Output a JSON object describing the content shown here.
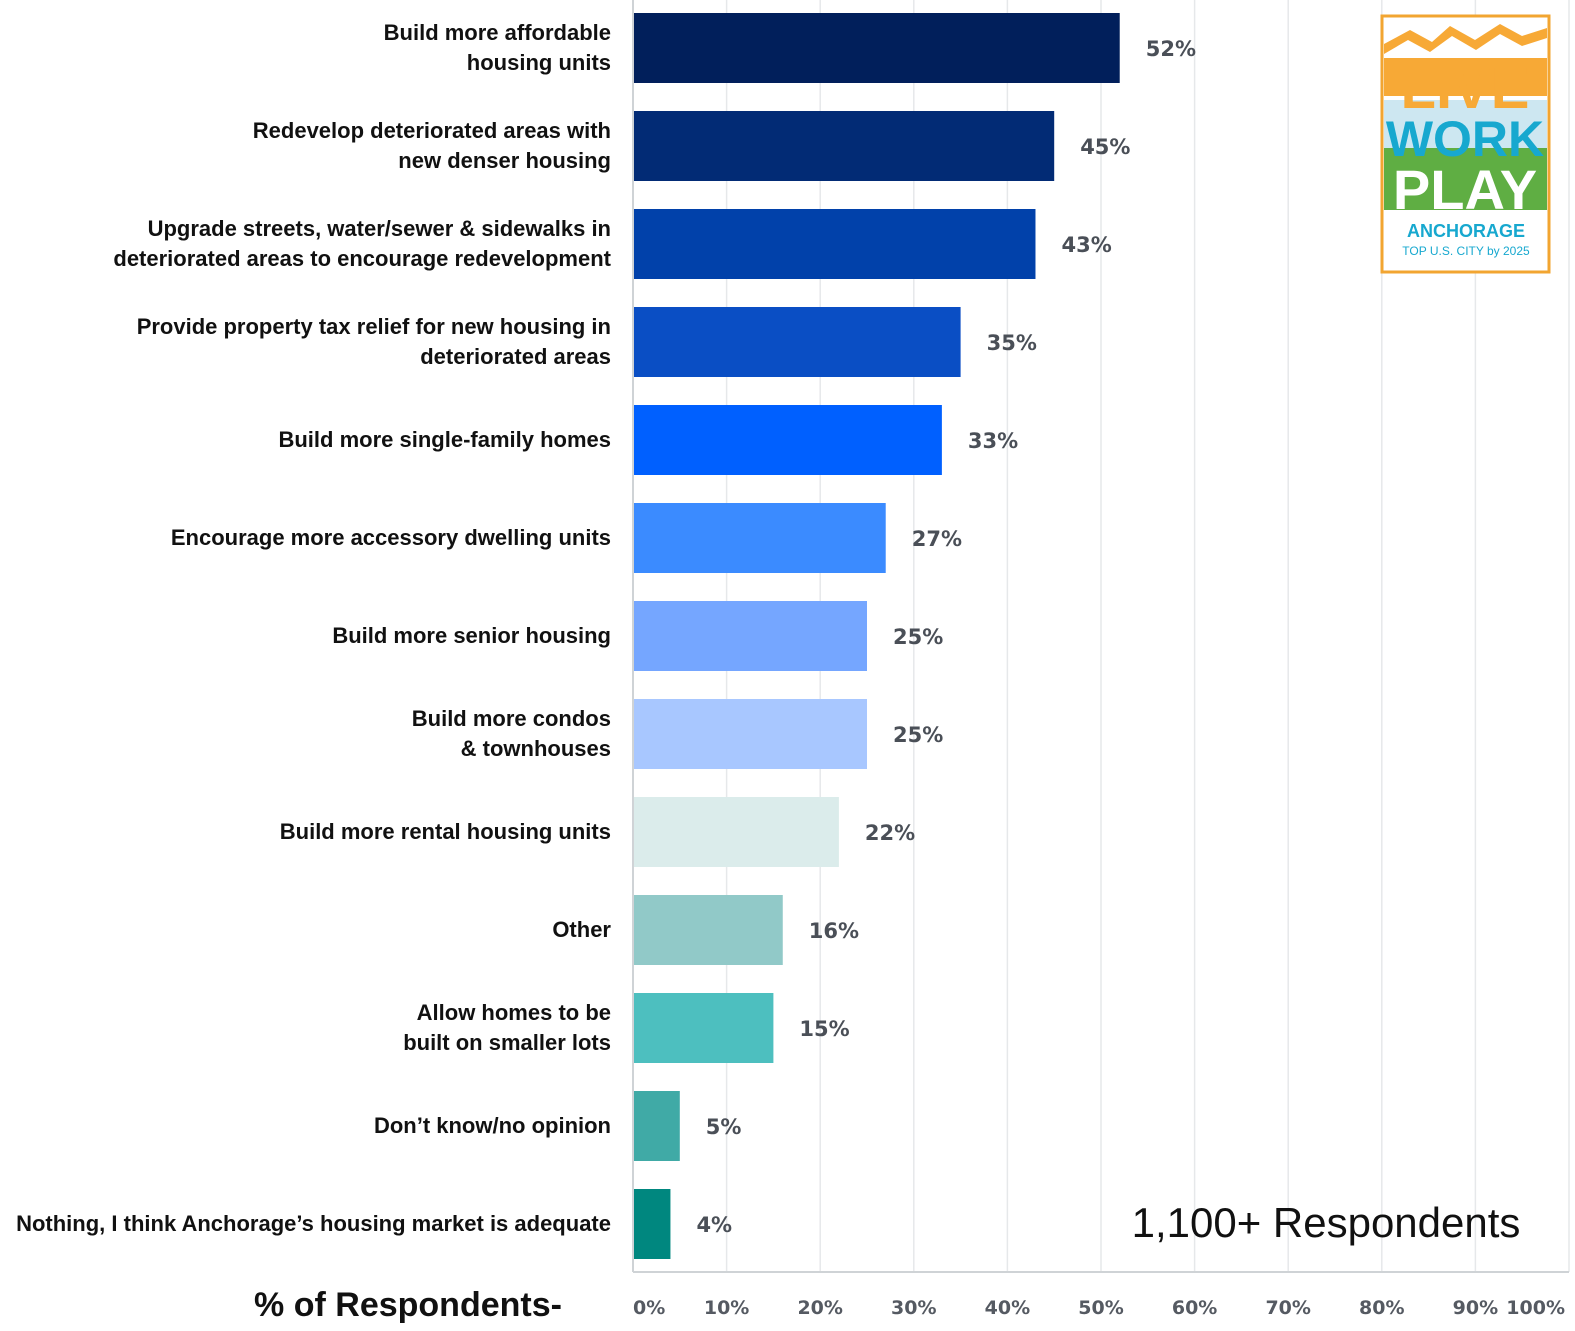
{
  "chart_data": {
    "type": "bar",
    "orientation": "horizontal",
    "categories": [
      [
        "Build more affordable",
        "housing units"
      ],
      [
        "Redevelop deteriorated areas with",
        "new denser housing"
      ],
      [
        "Upgrade streets, water/sewer & sidewalks in",
        "deteriorated areas to encourage redevelopment"
      ],
      [
        "Provide property tax relief for new housing in",
        "deteriorated areas"
      ],
      [
        "Build more single-family homes"
      ],
      [
        "Encourage more accessory dwelling units"
      ],
      [
        "Build more senior housing"
      ],
      [
        "Build more condos",
        "& townhouses"
      ],
      [
        "Build more rental housing units"
      ],
      [
        "Other"
      ],
      [
        "Allow homes to be",
        "built on smaller lots"
      ],
      [
        "Don’t know/no opinion"
      ],
      [
        "Nothing, I think Anchorage’s housing market is adequate"
      ]
    ],
    "values": [
      52,
      45,
      43,
      35,
      33,
      27,
      25,
      25,
      22,
      16,
      15,
      5,
      4
    ],
    "value_labels": [
      "52%",
      "45%",
      "43%",
      "35%",
      "33%",
      "27%",
      "25%",
      "25%",
      "22%",
      "16%",
      "15%",
      "5%",
      "4%"
    ],
    "bar_colors": [
      "#011f5b",
      "#022b75",
      "#0141aa",
      "#0a4ec4",
      "#0060ff",
      "#3b8bff",
      "#75a6ff",
      "#a8c7ff",
      "#dbeceb",
      "#91c9c8",
      "#4dbfbf",
      "#40aaa6",
      "#00877f"
    ],
    "x_ticks": [
      "0%",
      "10%",
      "20%",
      "30%",
      "40%",
      "50%",
      "60%",
      "70%",
      "80%",
      "90%",
      "100%"
    ],
    "xlim": [
      0,
      100
    ],
    "grid": "vertical",
    "xlabel": "% of Respondents-",
    "annotation": "1,100+ Respondents"
  },
  "logo": {
    "line1": "LIVE",
    "line2": "WORK",
    "line3": "PLAY",
    "city": "ANCHORAGE",
    "tagline": "TOP U.S. CITY by 2025"
  }
}
